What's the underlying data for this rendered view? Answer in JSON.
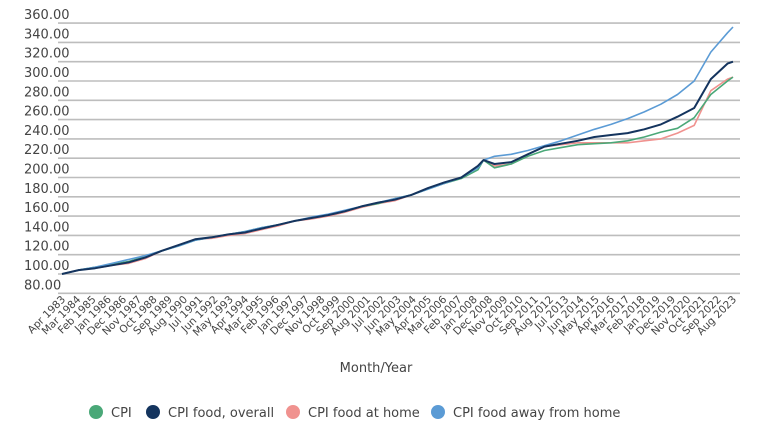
{
  "chart_data": {
    "type": "line",
    "title": "",
    "xlabel": "Month/Year",
    "ylabel": "",
    "ylim": [
      80,
      360
    ],
    "yticks": [
      "80.00",
      "100.00",
      "120.00",
      "140.00",
      "160.00",
      "180.00",
      "200.00",
      "220.00",
      "240.00",
      "260.00",
      "280.00",
      "300.00",
      "320.00",
      "340.00",
      "360.00"
    ],
    "grid": true,
    "legend_position": "bottom",
    "xticks": [
      "Apr 1983",
      "Mar 1984",
      "Feb 1985",
      "Jan 1986",
      "Dec 1986",
      "Nov 1987",
      "Oct 1988",
      "Sep 1989",
      "Aug 1990",
      "Jul 1991",
      "Jun 1992",
      "May 1993",
      "Apr 1994",
      "Mar 1995",
      "Feb 1996",
      "Jan 1997",
      "Dec 1997",
      "Nov 1998",
      "Oct 1999",
      "Sep 2000",
      "Aug 2001",
      "Jul 2002",
      "Jun 2003",
      "May 2004",
      "Apr 2005",
      "Mar 2006",
      "Feb 2007",
      "Jan 2008",
      "Dec 2008",
      "Nov 2009",
      "Oct 2010",
      "Sep 2011",
      "Aug 2012",
      "Jul 2013",
      "Jun 2014",
      "May 2015",
      "Apr 2016",
      "Mar 2017",
      "Feb 2018",
      "Jan 2019",
      "Dec 2019",
      "Nov 2020",
      "Oct 2021",
      "Sep 2022",
      "Aug 2023"
    ],
    "x": [
      "1983-04",
      "1984-04",
      "1985-04",
      "1986-04",
      "1987-04",
      "1988-04",
      "1989-04",
      "1990-04",
      "1991-04",
      "1992-04",
      "1993-04",
      "1994-04",
      "1995-04",
      "1996-04",
      "1997-04",
      "1998-04",
      "1999-04",
      "2000-04",
      "2001-04",
      "2002-04",
      "2003-04",
      "2004-04",
      "2005-04",
      "2006-04",
      "2007-04",
      "2008-04",
      "2008-08",
      "2009-04",
      "2010-04",
      "2011-04",
      "2012-04",
      "2013-04",
      "2014-04",
      "2015-04",
      "2016-04",
      "2017-04",
      "2018-04",
      "2019-04",
      "2020-04",
      "2021-04",
      "2022-04",
      "2023-04",
      "2023-08"
    ],
    "series": [
      {
        "name": "CPI",
        "color": "#4aa878",
        "values": [
          100,
          104,
          107,
          110,
          113,
          118,
          124,
          129,
          135,
          138,
          141,
          144,
          148,
          151,
          155,
          158,
          161,
          165,
          170,
          173,
          178,
          182,
          188,
          194,
          199,
          208,
          218,
          210,
          214,
          222,
          228,
          231,
          234,
          235,
          236,
          238,
          242,
          247,
          251,
          262,
          286,
          300,
          304
        ]
      },
      {
        "name": "CPI food, overall",
        "color": "#14345e",
        "values": [
          100,
          104,
          106,
          109,
          112,
          117,
          124,
          130,
          136,
          138,
          141,
          143,
          147,
          151,
          155,
          158,
          161,
          165,
          170,
          174,
          177,
          182,
          189,
          195,
          200,
          212,
          218,
          214,
          216,
          224,
          232,
          235,
          238,
          242,
          244,
          246,
          250,
          255,
          263,
          272,
          302,
          318,
          320
        ]
      },
      {
        "name": "CPI food at home",
        "color": "#f0928f",
        "values": [
          100,
          104,
          106,
          109,
          111,
          116,
          124,
          130,
          136,
          137,
          140,
          142,
          146,
          150,
          155,
          157,
          160,
          164,
          169,
          173,
          176,
          182,
          189,
          194,
          200,
          212,
          218,
          212,
          214,
          224,
          232,
          234,
          236,
          236,
          236,
          236,
          238,
          240,
          246,
          254,
          290,
          302,
          304
        ]
      },
      {
        "name": "CPI food away from home",
        "color": "#5b9bd5",
        "values": [
          100,
          104,
          107,
          111,
          115,
          119,
          124,
          129,
          135,
          138,
          141,
          144,
          148,
          151,
          155,
          159,
          162,
          166,
          170,
          174,
          178,
          182,
          188,
          194,
          200,
          210,
          218,
          222,
          224,
          228,
          233,
          238,
          244,
          250,
          255,
          261,
          268,
          276,
          286,
          300,
          330,
          350,
          356
        ]
      }
    ]
  }
}
